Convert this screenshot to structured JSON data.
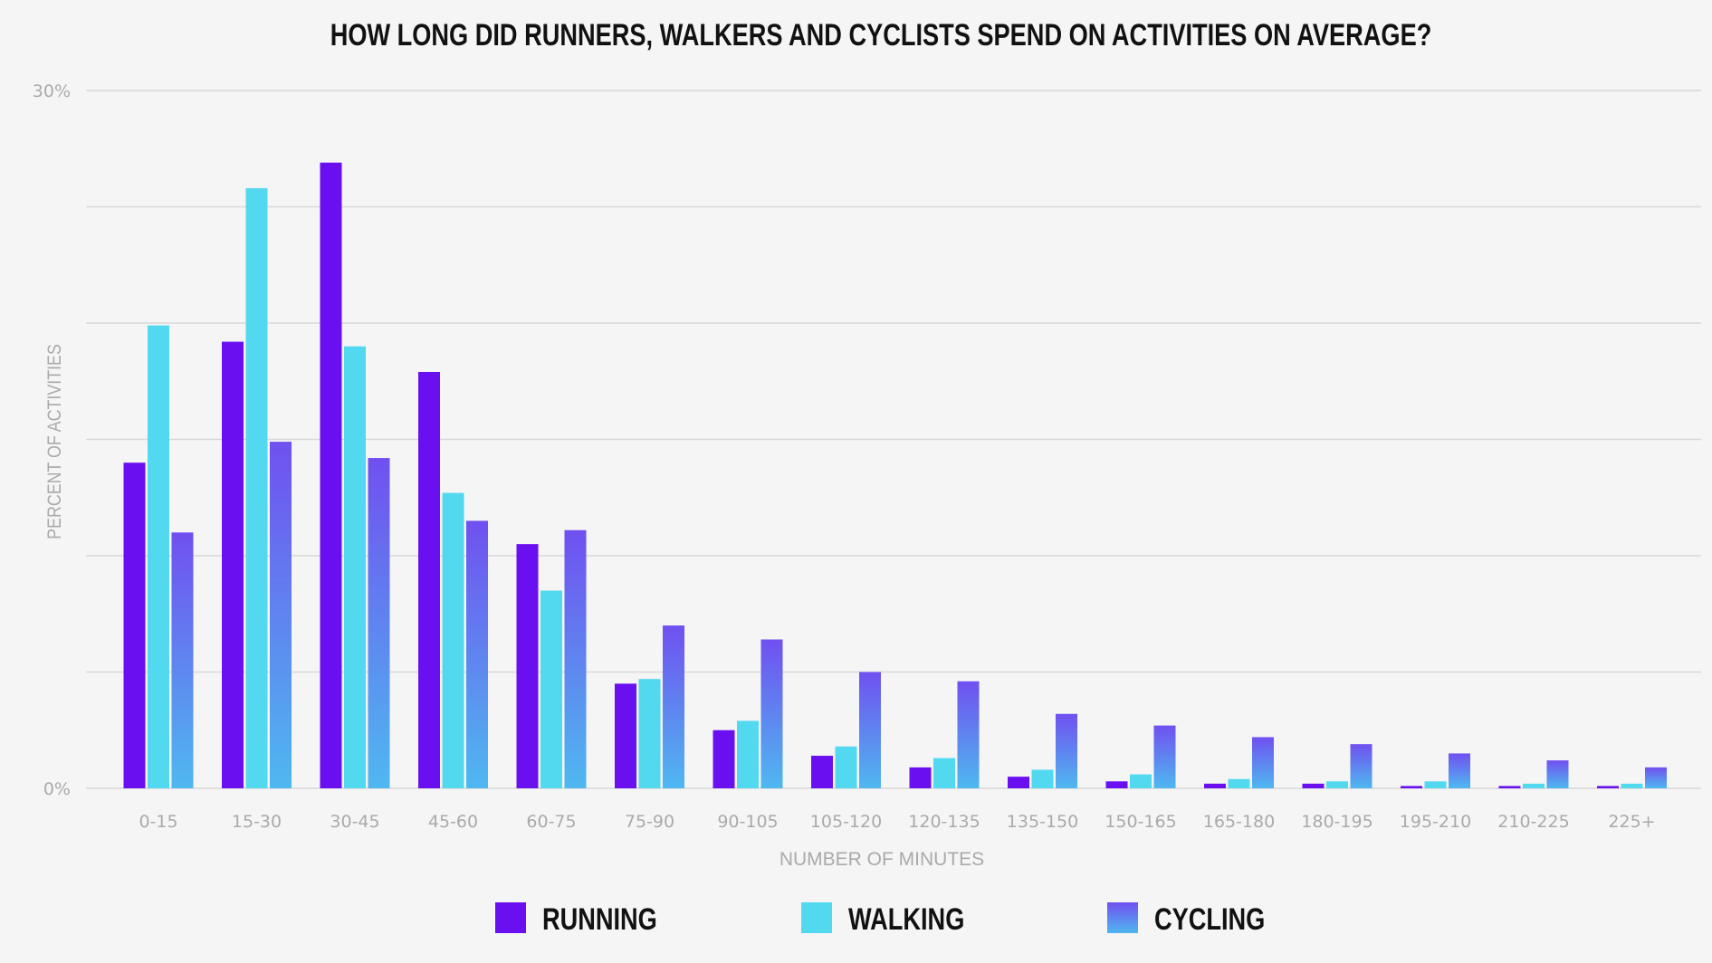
{
  "chart_data": {
    "type": "bar",
    "title": "HOW LONG DID RUNNERS, WALKERS AND CYCLISTS SPEND ON ACTIVITIES ON AVERAGE?",
    "xlabel": "NUMBER OF MINUTES",
    "ylabel": "PERCENT OF ACTIVITIES",
    "ylim": [
      0,
      30
    ],
    "y_tick_labels": [
      "0%",
      "30%"
    ],
    "grid": true,
    "grid_step": 5,
    "legend_position": "bottom",
    "categories": [
      "0-15",
      "15-30",
      "30-45",
      "45-60",
      "60-75",
      "75-90",
      "90-105",
      "105-120",
      "120-135",
      "135-150",
      "150-165",
      "165-180",
      "180-195",
      "195-210",
      "210-225",
      "225+"
    ],
    "series": [
      {
        "name": "RUNNING",
        "color": "#6a0ff0",
        "values": [
          14.0,
          19.2,
          26.9,
          17.9,
          10.5,
          4.5,
          2.5,
          1.4,
          0.9,
          0.5,
          0.3,
          0.2,
          0.2,
          0.1,
          0.1,
          0.1
        ]
      },
      {
        "name": "WALKING",
        "color": "#52d9f0",
        "values": [
          19.9,
          25.8,
          19.0,
          12.7,
          8.5,
          4.7,
          2.9,
          1.8,
          1.3,
          0.8,
          0.6,
          0.4,
          0.3,
          0.3,
          0.2,
          0.2
        ]
      },
      {
        "name": "CYCLING",
        "color_top": "#7050f0",
        "color_bottom": "#4fb8f0",
        "values": [
          11.0,
          14.9,
          14.2,
          11.5,
          11.1,
          7.0,
          6.4,
          5.0,
          4.6,
          3.2,
          2.7,
          2.2,
          1.9,
          1.5,
          1.2,
          0.9
        ]
      }
    ]
  }
}
